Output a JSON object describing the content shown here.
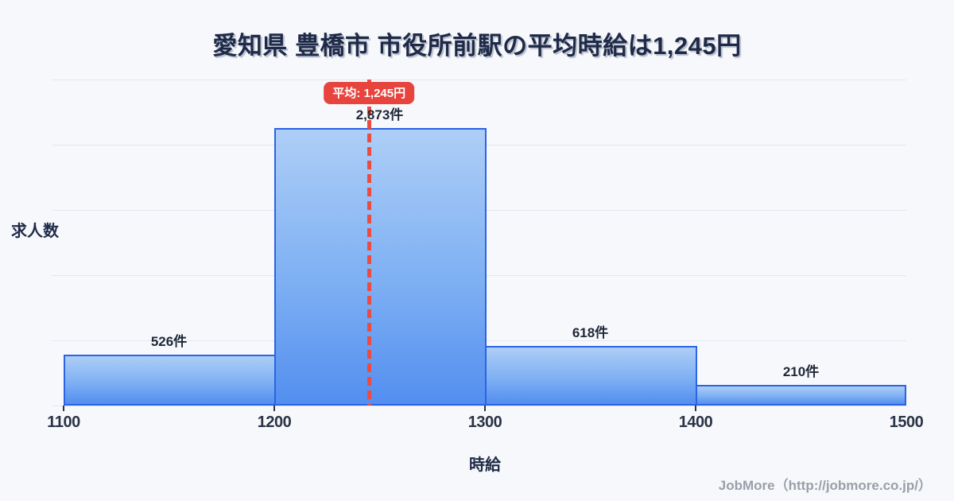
{
  "title": "愛知県 豊橋市 市役所前駅の平均時給は1,245円",
  "axes": {
    "ylabel": "求人数",
    "xlabel": "時給"
  },
  "footer": {
    "credit": "JobMore（http://jobmore.co.jp/）"
  },
  "chart_data": {
    "type": "bar",
    "title": "愛知県 豊橋市 市役所前駅の平均時給は1,245円",
    "xlabel": "時給",
    "ylabel": "求人数",
    "xlim": [
      1100,
      1500
    ],
    "ylim": [
      0,
      3375
    ],
    "grid": true,
    "gridline_count": 6,
    "x_ticks": [
      1100,
      1200,
      1300,
      1400,
      1500
    ],
    "bins": [
      {
        "range": [
          1100,
          1200
        ],
        "count": 526,
        "label": "526件"
      },
      {
        "range": [
          1200,
          1300
        ],
        "count": 2873,
        "label": "2,873件"
      },
      {
        "range": [
          1300,
          1400
        ],
        "count": 618,
        "label": "618件"
      },
      {
        "range": [
          1400,
          1500
        ],
        "count": 210,
        "label": "210件"
      }
    ],
    "average": {
      "value": 1245,
      "label": "平均: 1,245円"
    },
    "colors": {
      "bar_border": "#2a63e4",
      "bar_fill_top": "#a8cbf6",
      "bar_fill_bottom": "#4e8bef",
      "average_line": "#ed4a42",
      "badge_bg": "#e8443e",
      "badge_text": "#ffffff",
      "title_text": "#1e2a47",
      "grid": "#e3e7ef",
      "footer_text": "#9aa0aa",
      "background": "#f7f8fb"
    }
  }
}
